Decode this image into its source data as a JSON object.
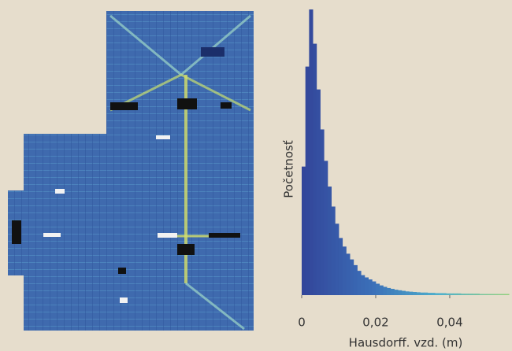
{
  "chart_data": {
    "type": "histogram",
    "x_label": "Hausdorff. vzd. (m)",
    "y_label": "Početnosť",
    "bins": [
      0,
      0.001,
      0.002,
      0.003,
      0.004,
      0.005,
      0.006,
      0.007,
      0.008,
      0.009,
      0.01,
      0.011,
      0.012,
      0.013,
      0.014,
      0.015,
      0.016,
      0.017,
      0.018,
      0.019,
      0.02,
      0.021,
      0.022,
      0.023,
      0.024,
      0.025,
      0.026,
      0.027,
      0.028,
      0.029,
      0.03,
      0.031,
      0.032,
      0.033,
      0.034,
      0.035,
      0.036,
      0.037,
      0.038,
      0.039,
      0.04,
      0.041,
      0.042,
      0.043,
      0.044,
      0.045,
      0.046,
      0.047,
      0.048,
      0.049,
      0.05,
      0.051,
      0.052,
      0.053,
      0.054,
      0.055,
      0.056
    ],
    "counts": [
      45,
      80,
      100,
      88,
      72,
      58,
      47,
      38,
      31,
      25,
      20,
      17,
      14.5,
      12.5,
      10.5,
      8.5,
      7,
      6.2,
      5.5,
      4.8,
      4,
      3.4,
      2.9,
      2.5,
      2.2,
      1.9,
      1.7,
      1.5,
      1.3,
      1.2,
      1.1,
      1,
      0.9,
      0.9,
      0.8,
      0.8,
      0.7,
      0.7,
      0.7,
      0.6,
      0.6,
      0.6,
      0.6,
      0.5,
      0.5,
      0.5,
      0.5,
      0.5,
      0.4,
      0.4,
      0.4,
      0.4,
      0.4,
      0.4,
      0.4,
      0.4
    ],
    "gradient": [
      "#33469a",
      "#3b6fb8",
      "#4fb0cc",
      "#8fd07e"
    ],
    "xlim": [
      0,
      0.0565
    ],
    "ylim": [
      0,
      100
    ],
    "xticks": [
      0,
      {
        "value": 0.02,
        "label": "0,02"
      },
      {
        "value": 0.04,
        "label": "0,04"
      }
    ]
  }
}
